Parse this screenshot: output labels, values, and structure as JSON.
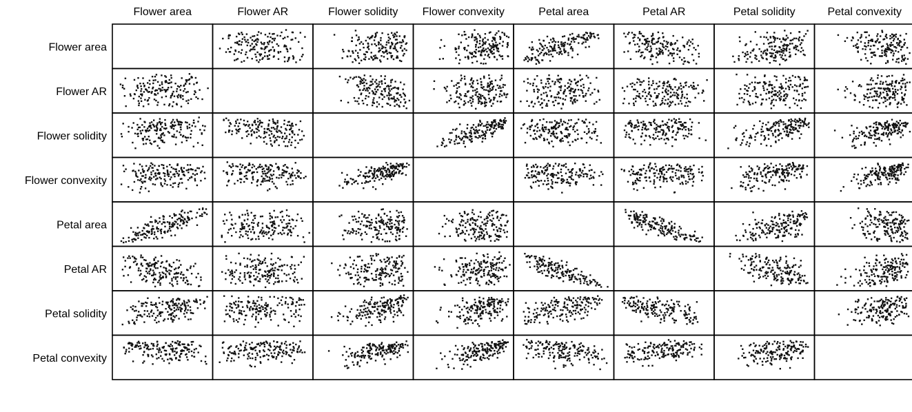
{
  "chart_data": {
    "type": "scatter",
    "subtype": "scatter-matrix",
    "variables": [
      "Flower area",
      "Flower AR",
      "Flower solidity",
      "Flower convexity",
      "Petal area",
      "Petal AR",
      "Petal solidity",
      "Petal convexity"
    ],
    "diagonal": "empty",
    "grid": false,
    "axis_ticks": false,
    "marker": "small square",
    "marker_color": "#111111",
    "n_points_per_panel": 170,
    "correlations": [
      [
        1.0,
        0.0,
        0.05,
        0.05,
        0.8,
        -0.45,
        0.4,
        -0.2
      ],
      [
        0.0,
        1.0,
        -0.3,
        0.0,
        0.05,
        0.05,
        0.1,
        0.05
      ],
      [
        0.05,
        -0.3,
        1.0,
        0.7,
        0.0,
        0.0,
        0.45,
        0.55
      ],
      [
        0.05,
        0.0,
        0.7,
        1.0,
        0.05,
        0.1,
        0.45,
        0.65
      ],
      [
        0.8,
        0.05,
        0.0,
        0.05,
        1.0,
        -0.85,
        0.55,
        -0.25
      ],
      [
        -0.45,
        0.05,
        0.0,
        0.1,
        -0.85,
        1.0,
        -0.55,
        0.4
      ],
      [
        0.4,
        0.1,
        0.45,
        0.45,
        0.55,
        -0.55,
        1.0,
        0.3
      ],
      [
        -0.2,
        0.05,
        0.55,
        0.65,
        -0.25,
        0.4,
        0.3,
        1.0
      ]
    ],
    "skew": {
      "Flower area": 0.0,
      "Flower AR": 0.0,
      "Flower solidity": -0.9,
      "Flower convexity": -1.1,
      "Petal area": 0.2,
      "Petal AR": 0.2,
      "Petal solidity": -0.7,
      "Petal convexity": -1.3
    }
  }
}
